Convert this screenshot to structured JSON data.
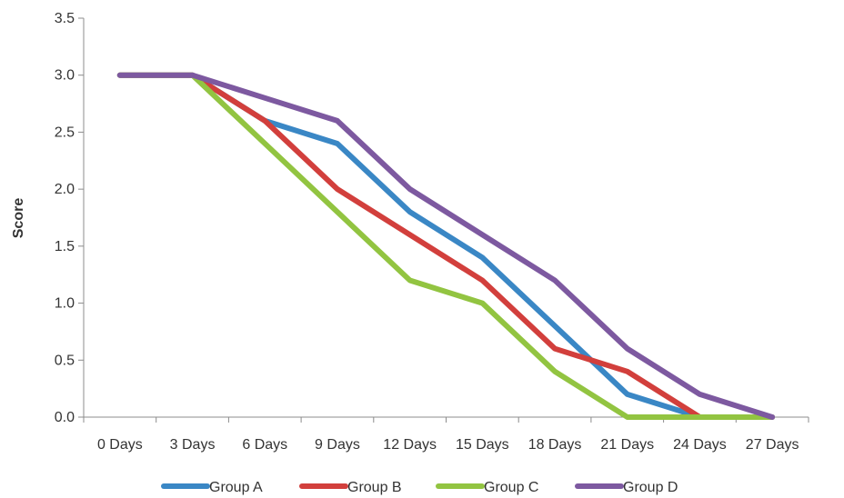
{
  "chart_data": {
    "type": "line",
    "title": "",
    "xlabel": "",
    "ylabel": "Score",
    "categories": [
      "0 Days",
      "3 Days",
      "6 Days",
      "9 Days",
      "12 Days",
      "15 Days",
      "18 Days",
      "21 Days",
      "24 Days",
      "27 Days"
    ],
    "ylim": [
      0,
      3.5
    ],
    "yticks": [
      "0.0",
      "0.5",
      "1.0",
      "1.5",
      "2.0",
      "2.5",
      "3.0",
      "3.5"
    ],
    "grid": false,
    "legend_position": "bottom",
    "series": [
      {
        "name": "Group A",
        "color": "#3a87c5",
        "values": [
          3.0,
          3.0,
          2.6,
          2.4,
          1.8,
          1.4,
          0.8,
          0.2,
          0.0,
          0.0
        ]
      },
      {
        "name": "Group B",
        "color": "#d23f3c",
        "values": [
          3.0,
          3.0,
          2.6,
          2.0,
          1.6,
          1.2,
          0.6,
          0.4,
          0.0,
          0.0
        ]
      },
      {
        "name": "Group C",
        "color": "#92c441",
        "values": [
          3.0,
          3.0,
          2.4,
          1.8,
          1.2,
          1.0,
          0.4,
          0.0,
          0.0,
          0.0
        ]
      },
      {
        "name": "Group D",
        "color": "#7d59a0",
        "values": [
          3.0,
          3.0,
          2.8,
          2.6,
          2.0,
          1.6,
          1.2,
          0.6,
          0.2,
          0.0
        ]
      }
    ]
  }
}
